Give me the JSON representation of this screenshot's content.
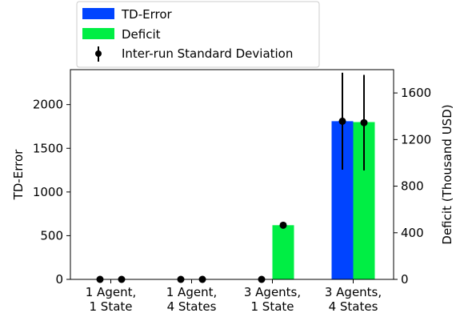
{
  "chart_data": {
    "type": "bar",
    "categories": [
      "1 Agent,\n1 State",
      "1 Agent,\n4 States",
      "3 Agents,\n1 State",
      "3 Agents,\n4 States"
    ],
    "xlabel": "",
    "ylabel_left": "TD-Error",
    "ylabel_right": "Deficit (Thousand USD)",
    "ylim_left": [
      0,
      2400
    ],
    "ylim_right": [
      0,
      1800
    ],
    "yticks_left": [
      0,
      500,
      1000,
      1500,
      2000
    ],
    "yticks_right": [
      0,
      400,
      800,
      1200,
      1600
    ],
    "grid": false,
    "legend_position": "top-left",
    "series": [
      {
        "name": "TD-Error",
        "axis": "left",
        "color": "#0044ff",
        "values": [
          0,
          0,
          0,
          1810
        ],
        "mean_points": [
          0,
          0,
          0,
          1810
        ],
        "error": [
          0,
          0,
          0,
          555
        ]
      },
      {
        "name": "Deficit",
        "axis": "right",
        "color": "#00ee44",
        "values": [
          0,
          0,
          465,
          1350
        ],
        "mean_points": [
          0,
          0,
          465,
          1345
        ],
        "error": [
          0,
          0,
          0,
          410
        ]
      }
    ],
    "errorbar_legend": "Inter-run Standard Deviation",
    "errorbar_color": "#000000"
  }
}
